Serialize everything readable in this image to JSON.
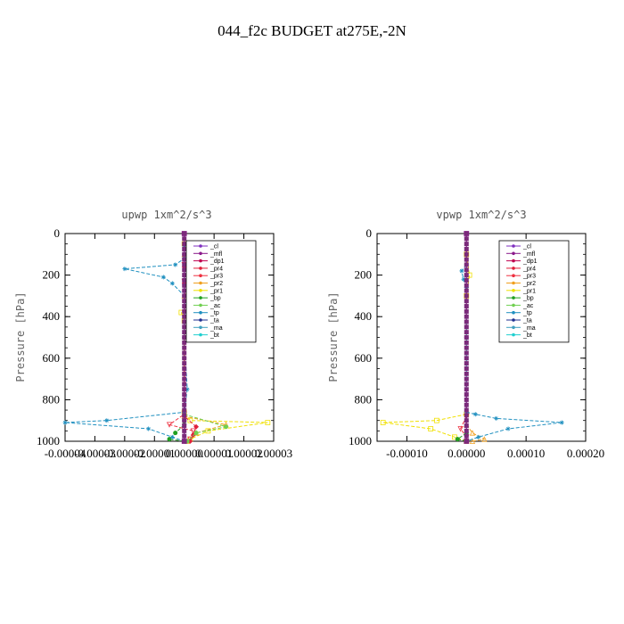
{
  "page": {
    "title": "044_f2c  BUDGET at275E,-2N"
  },
  "legend_entries": [
    "_cl",
    "_mfl",
    "_dp1",
    "_pr4",
    "_pr3",
    "_pr2",
    "_pr1",
    "_bp",
    "_ac",
    "_tp",
    "_ta",
    "_ma",
    "_bt"
  ],
  "colors": {
    "_cl": "#7f2fbf",
    "_mfl": "#8b1a8b",
    "_dp1": "#c0004f",
    "_pr4": "#e0203a",
    "_pr3": "#ee3040",
    "_pr2": "#f0a020",
    "_pr1": "#f0e000",
    "_bp": "#20a020",
    "_ac": "#70d050",
    "_tp": "#2090c0",
    "_ta": "#203090",
    "_ma": "#40a0c0",
    "_bt": "#20d0d0"
  },
  "chart_data": [
    {
      "type": "line",
      "title": "upwp   1xm^2/s^3",
      "ylabel": "Pressure [hPa]",
      "xlabel": "",
      "xlim": [
        -4e-05,
        3e-05
      ],
      "ylim": [
        1000,
        0
      ],
      "y_inverted": true,
      "xticks": [
        -4e-05,
        -3e-05,
        -2e-05,
        -1e-05,
        0.0,
        1e-05,
        2e-05,
        3e-05
      ],
      "xtick_labels": [
        "-0.00004",
        "-0.00003",
        "-0.00002",
        "-0.00001",
        "0.00000",
        "0.00001",
        "0.00002",
        "0.00003"
      ],
      "yticks": [
        0,
        200,
        400,
        600,
        800,
        1000
      ],
      "ytick_labels": [
        "0",
        "200",
        "400",
        "600",
        "800",
        "1000"
      ],
      "legend_position": "top-right",
      "series": [
        {
          "name": "_pr1",
          "marker": "square",
          "points": [
            [
              0,
              50
            ],
            [
              2e-06,
              100
            ],
            [
              6e-06,
              150
            ],
            [
              8e-06,
              200
            ],
            [
              3e-06,
              250
            ],
            [
              4e-06,
              300
            ],
            [
              -1e-06,
              380
            ],
            [
              0,
              420
            ],
            [
              0,
              860
            ],
            [
              2e-06,
              900
            ],
            [
              2.8e-05,
              910
            ],
            [
              8e-06,
              950
            ],
            [
              2e-06,
              990
            ]
          ]
        },
        {
          "name": "_pr2",
          "marker": "triangle",
          "points": [
            [
              0,
              100
            ],
            [
              3e-06,
              180
            ],
            [
              2e-06,
              250
            ],
            [
              0,
              300
            ],
            [
              0,
              880
            ],
            [
              1.4e-05,
              920
            ],
            [
              4e-06,
              960
            ],
            [
              1e-06,
              1000
            ]
          ]
        },
        {
          "name": "_pr3",
          "marker": "triangle-down",
          "points": [
            [
              0,
              150
            ],
            [
              2e-06,
              190
            ],
            [
              0,
              230
            ],
            [
              0,
              870
            ],
            [
              -5e-06,
              920
            ],
            [
              3e-06,
              950
            ],
            [
              2e-06,
              990
            ]
          ]
        },
        {
          "name": "_pr4",
          "marker": "diamond",
          "points": [
            [
              0,
              160
            ],
            [
              2e-06,
              200
            ],
            [
              0,
              240
            ],
            [
              0,
              880
            ],
            [
              4e-06,
              930
            ],
            [
              3e-06,
              970
            ],
            [
              2e-06,
              1000
            ]
          ]
        },
        {
          "name": "_ac",
          "marker": "circle",
          "points": [
            [
              0,
              870
            ],
            [
              1.4e-05,
              930
            ],
            [
              4e-06,
              960
            ],
            [
              1e-06,
              1000
            ]
          ]
        },
        {
          "name": "_bp",
          "marker": "circle",
          "points": [
            [
              0,
              920
            ],
            [
              -3e-06,
              960
            ],
            [
              -5e-06,
              990
            ],
            [
              0,
              1000
            ]
          ]
        },
        {
          "name": "_tp",
          "marker": "star",
          "points": [
            [
              0,
              60
            ],
            [
              0,
              120
            ],
            [
              -3e-06,
              150
            ],
            [
              -2e-05,
              170
            ],
            [
              -7e-06,
              210
            ],
            [
              -4e-06,
              240
            ],
            [
              0,
              300
            ],
            [
              1e-06,
              390
            ],
            [
              0,
              500
            ],
            [
              1e-06,
              750
            ],
            [
              0,
              860
            ],
            [
              -2.6e-05,
              900
            ],
            [
              -4e-05,
              910
            ],
            [
              -1.2e-05,
              940
            ],
            [
              -4e-06,
              980
            ],
            [
              0,
              1000
            ]
          ]
        },
        {
          "name": "_ta",
          "marker": "plus",
          "points": [
            [
              0,
              100
            ],
            [
              0,
              300
            ],
            [
              0,
              600
            ],
            [
              0,
              900
            ],
            [
              0,
              1000
            ]
          ]
        },
        {
          "name": "_cl",
          "marker": "plus",
          "points": [
            [
              0,
              0
            ],
            [
              0,
              500
            ],
            [
              0,
              1000
            ]
          ]
        },
        {
          "name": "_mfl",
          "marker": "square",
          "points": [
            [
              0,
              0
            ],
            [
              0,
              1000
            ]
          ]
        }
      ]
    },
    {
      "type": "line",
      "title": "vpwp   1xm^2/s^3",
      "ylabel": "Pressure [hPa]",
      "xlabel": "",
      "xlim": [
        -0.00015,
        0.0002
      ],
      "ylim": [
        1000,
        0
      ],
      "y_inverted": true,
      "xticks": [
        -0.0001,
        0.0,
        0.0001,
        0.0002
      ],
      "xtick_labels": [
        "-0.00010",
        "0.00000",
        "0.00010",
        "0.00020"
      ],
      "yticks": [
        0,
        200,
        400,
        600,
        800,
        1000
      ],
      "ytick_labels": [
        "0",
        "200",
        "400",
        "600",
        "800",
        "1000"
      ],
      "legend_position": "top-right",
      "series": [
        {
          "name": "_pr1",
          "marker": "square",
          "points": [
            [
              0,
              100
            ],
            [
              5e-06,
              200
            ],
            [
              0,
              300
            ],
            [
              0,
              870
            ],
            [
              -5e-05,
              900
            ],
            [
              -0.00014,
              910
            ],
            [
              -6e-05,
              940
            ],
            [
              -2e-05,
              980
            ],
            [
              0,
              1000
            ]
          ]
        },
        {
          "name": "_pr2",
          "marker": "triangle",
          "points": [
            [
              0,
              920
            ],
            [
              1e-05,
              960
            ],
            [
              3e-05,
              990
            ],
            [
              1e-05,
              1000
            ]
          ]
        },
        {
          "name": "_pr3",
          "marker": "triangle-down",
          "points": [
            [
              0,
              880
            ],
            [
              -1e-05,
              940
            ],
            [
              0,
              980
            ]
          ]
        },
        {
          "name": "_bp",
          "marker": "circle",
          "points": [
            [
              0,
              960
            ],
            [
              -1.5e-05,
              990
            ],
            [
              0,
              1000
            ]
          ]
        },
        {
          "name": "_tp",
          "marker": "star",
          "points": [
            [
              0,
              150
            ],
            [
              -8e-06,
              180
            ],
            [
              -5e-06,
              220
            ],
            [
              0,
              260
            ],
            [
              0,
              860
            ],
            [
              1.5e-05,
              870
            ],
            [
              5e-05,
              890
            ],
            [
              0.00016,
              910
            ],
            [
              7e-05,
              940
            ],
            [
              2e-05,
              980
            ],
            [
              0,
              1000
            ]
          ]
        },
        {
          "name": "_cl",
          "marker": "plus",
          "points": [
            [
              0,
              0
            ],
            [
              0,
              500
            ],
            [
              0,
              1000
            ]
          ]
        },
        {
          "name": "_mfl",
          "marker": "square",
          "points": [
            [
              0,
              0
            ],
            [
              0,
              1000
            ]
          ]
        }
      ]
    }
  ]
}
